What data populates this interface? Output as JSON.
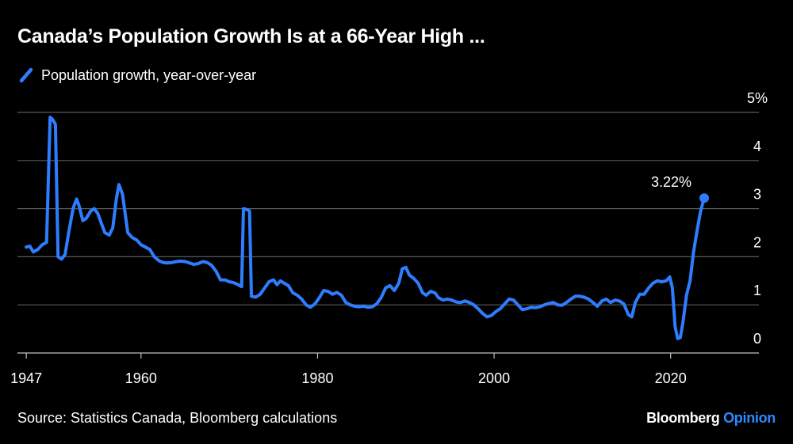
{
  "chart_data": {
    "type": "line",
    "title": "Canada’s Population Growth Is at a 66-Year High ...",
    "xlabel": "",
    "ylabel": "",
    "xlim": [
      1946,
      2030
    ],
    "ylim": [
      0,
      5
    ],
    "x_ticks": [
      {
        "value": 1947,
        "label": "1947"
      },
      {
        "value": 1960,
        "label": "1960"
      },
      {
        "value": 1980,
        "label": "1980"
      },
      {
        "value": 2000,
        "label": "2000"
      },
      {
        "value": 2020,
        "label": "2020"
      }
    ],
    "y_ticks": [
      {
        "value": 0,
        "label": "0"
      },
      {
        "value": 1,
        "label": "1"
      },
      {
        "value": 2,
        "label": "2"
      },
      {
        "value": 3,
        "label": "3"
      },
      {
        "value": 4,
        "label": "4"
      },
      {
        "value": 5,
        "label": "5%"
      }
    ],
    "grid": "horizontal",
    "y_axis_position": "right",
    "legend_position": "top-left",
    "series": [
      {
        "name": "Population growth, year-over-year",
        "color": "#2f7dff",
        "points": [
          [
            1947.0,
            2.2
          ],
          [
            1947.4,
            2.22
          ],
          [
            1947.8,
            2.1
          ],
          [
            1948.3,
            2.15
          ],
          [
            1948.8,
            2.25
          ],
          [
            1949.3,
            2.3
          ],
          [
            1949.7,
            4.9
          ],
          [
            1950.0,
            4.85
          ],
          [
            1950.3,
            4.75
          ],
          [
            1950.6,
            2.0
          ],
          [
            1951.0,
            1.95
          ],
          [
            1951.4,
            2.05
          ],
          [
            1951.8,
            2.5
          ],
          [
            1952.3,
            3.0
          ],
          [
            1952.7,
            3.2
          ],
          [
            1953.0,
            3.05
          ],
          [
            1953.4,
            2.75
          ],
          [
            1953.8,
            2.8
          ],
          [
            1954.3,
            2.95
          ],
          [
            1954.7,
            3.0
          ],
          [
            1955.1,
            2.9
          ],
          [
            1955.5,
            2.7
          ],
          [
            1955.9,
            2.5
          ],
          [
            1956.4,
            2.45
          ],
          [
            1956.8,
            2.6
          ],
          [
            1957.2,
            3.2
          ],
          [
            1957.5,
            3.5
          ],
          [
            1957.9,
            3.3
          ],
          [
            1958.2,
            2.9
          ],
          [
            1958.5,
            2.5
          ],
          [
            1959.0,
            2.4
          ],
          [
            1959.5,
            2.35
          ],
          [
            1960.0,
            2.25
          ],
          [
            1960.5,
            2.2
          ],
          [
            1961.0,
            2.15
          ],
          [
            1961.5,
            2.0
          ],
          [
            1962.0,
            1.92
          ],
          [
            1962.5,
            1.88
          ],
          [
            1963.0,
            1.87
          ],
          [
            1963.5,
            1.88
          ],
          [
            1964.0,
            1.9
          ],
          [
            1964.5,
            1.91
          ],
          [
            1965.0,
            1.9
          ],
          [
            1965.5,
            1.87
          ],
          [
            1966.0,
            1.84
          ],
          [
            1966.5,
            1.86
          ],
          [
            1967.0,
            1.9
          ],
          [
            1967.5,
            1.88
          ],
          [
            1968.0,
            1.82
          ],
          [
            1968.5,
            1.7
          ],
          [
            1969.0,
            1.52
          ],
          [
            1969.5,
            1.52
          ],
          [
            1970.0,
            1.48
          ],
          [
            1970.5,
            1.46
          ],
          [
            1971.0,
            1.42
          ],
          [
            1971.4,
            1.38
          ],
          [
            1971.6,
            3.0
          ],
          [
            1972.0,
            2.98
          ],
          [
            1972.3,
            2.95
          ],
          [
            1972.5,
            1.18
          ],
          [
            1973.0,
            1.16
          ],
          [
            1973.5,
            1.22
          ],
          [
            1974.0,
            1.35
          ],
          [
            1974.5,
            1.48
          ],
          [
            1975.0,
            1.52
          ],
          [
            1975.4,
            1.42
          ],
          [
            1975.8,
            1.5
          ],
          [
            1976.2,
            1.45
          ],
          [
            1976.7,
            1.4
          ],
          [
            1977.2,
            1.25
          ],
          [
            1977.7,
            1.2
          ],
          [
            1978.2,
            1.12
          ],
          [
            1978.7,
            1.0
          ],
          [
            1979.2,
            0.95
          ],
          [
            1979.7,
            1.02
          ],
          [
            1980.2,
            1.15
          ],
          [
            1980.7,
            1.3
          ],
          [
            1981.2,
            1.28
          ],
          [
            1981.7,
            1.22
          ],
          [
            1982.2,
            1.26
          ],
          [
            1982.7,
            1.2
          ],
          [
            1983.2,
            1.05
          ],
          [
            1983.7,
            1.0
          ],
          [
            1984.2,
            0.97
          ],
          [
            1984.7,
            0.96
          ],
          [
            1985.2,
            0.97
          ],
          [
            1985.7,
            0.95
          ],
          [
            1986.2,
            0.96
          ],
          [
            1986.7,
            1.02
          ],
          [
            1987.2,
            1.15
          ],
          [
            1987.7,
            1.35
          ],
          [
            1988.2,
            1.4
          ],
          [
            1988.7,
            1.3
          ],
          [
            1989.2,
            1.45
          ],
          [
            1989.6,
            1.75
          ],
          [
            1990.0,
            1.78
          ],
          [
            1990.4,
            1.62
          ],
          [
            1990.9,
            1.55
          ],
          [
            1991.4,
            1.45
          ],
          [
            1991.9,
            1.25
          ],
          [
            1992.3,
            1.2
          ],
          [
            1992.8,
            1.28
          ],
          [
            1993.3,
            1.25
          ],
          [
            1993.7,
            1.15
          ],
          [
            1994.2,
            1.1
          ],
          [
            1994.7,
            1.12
          ],
          [
            1995.2,
            1.1
          ],
          [
            1995.7,
            1.06
          ],
          [
            1996.2,
            1.05
          ],
          [
            1996.7,
            1.08
          ],
          [
            1997.2,
            1.05
          ],
          [
            1997.7,
            1.0
          ],
          [
            1998.2,
            0.92
          ],
          [
            1998.7,
            0.82
          ],
          [
            1999.2,
            0.75
          ],
          [
            1999.7,
            0.78
          ],
          [
            2000.2,
            0.86
          ],
          [
            2000.7,
            0.92
          ],
          [
            2001.2,
            1.02
          ],
          [
            2001.7,
            1.12
          ],
          [
            2002.2,
            1.1
          ],
          [
            2002.7,
            1.0
          ],
          [
            2003.2,
            0.9
          ],
          [
            2003.7,
            0.92
          ],
          [
            2004.2,
            0.95
          ],
          [
            2004.7,
            0.94
          ],
          [
            2005.2,
            0.96
          ],
          [
            2005.7,
            1.0
          ],
          [
            2006.2,
            1.03
          ],
          [
            2006.7,
            1.05
          ],
          [
            2007.2,
            1.0
          ],
          [
            2007.7,
            0.99
          ],
          [
            2008.2,
            1.05
          ],
          [
            2008.7,
            1.12
          ],
          [
            2009.2,
            1.18
          ],
          [
            2009.7,
            1.18
          ],
          [
            2010.2,
            1.16
          ],
          [
            2010.7,
            1.12
          ],
          [
            2011.2,
            1.05
          ],
          [
            2011.7,
            0.97
          ],
          [
            2012.2,
            1.08
          ],
          [
            2012.7,
            1.12
          ],
          [
            2013.2,
            1.05
          ],
          [
            2013.7,
            1.1
          ],
          [
            2014.2,
            1.08
          ],
          [
            2014.7,
            1.02
          ],
          [
            2015.2,
            0.8
          ],
          [
            2015.6,
            0.75
          ],
          [
            2016.0,
            1.05
          ],
          [
            2016.5,
            1.22
          ],
          [
            2017.0,
            1.22
          ],
          [
            2017.5,
            1.35
          ],
          [
            2018.0,
            1.45
          ],
          [
            2018.5,
            1.5
          ],
          [
            2019.0,
            1.48
          ],
          [
            2019.5,
            1.5
          ],
          [
            2019.9,
            1.58
          ],
          [
            2020.2,
            1.35
          ],
          [
            2020.5,
            0.55
          ],
          [
            2020.8,
            0.3
          ],
          [
            2021.1,
            0.32
          ],
          [
            2021.4,
            0.65
          ],
          [
            2021.8,
            1.2
          ],
          [
            2022.2,
            1.5
          ],
          [
            2022.6,
            2.1
          ],
          [
            2023.0,
            2.55
          ],
          [
            2023.4,
            2.95
          ],
          [
            2023.8,
            3.22
          ]
        ]
      }
    ],
    "annotations": [
      {
        "x": 2023.8,
        "y": 3.22,
        "label": "3.22%"
      }
    ]
  },
  "source": "Source: Statistics Canada, Bloomberg calculations",
  "brand": {
    "name": "Bloomberg",
    "suffix": "Opinion"
  }
}
